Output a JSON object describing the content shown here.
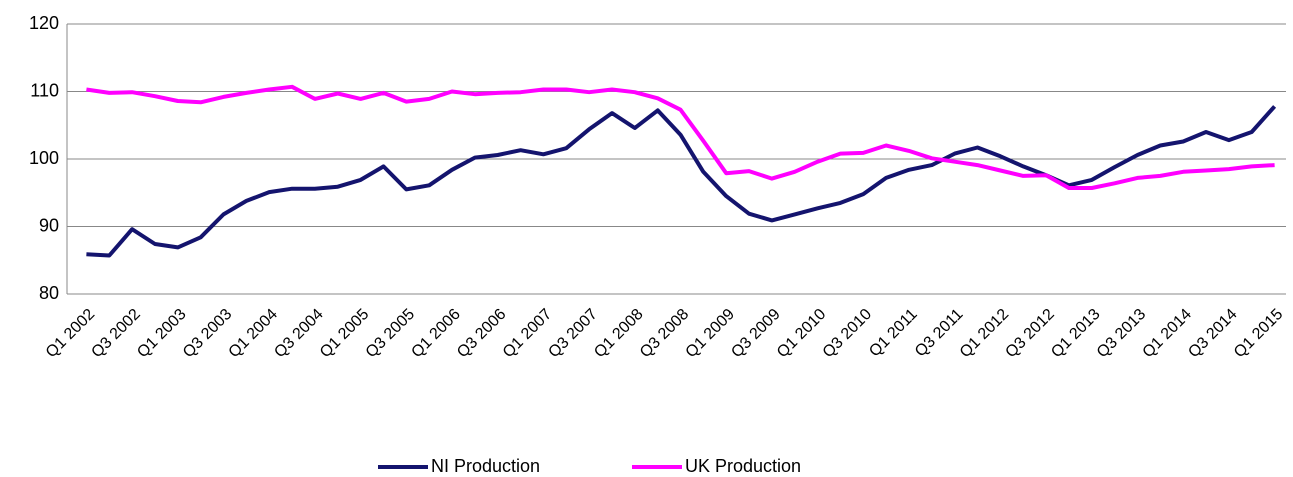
{
  "chart_data": {
    "type": "line",
    "categories": [
      "Q1 2002",
      null,
      "Q3 2002",
      null,
      "Q1 2003",
      null,
      "Q3 2003",
      null,
      "Q1 2004",
      null,
      "Q3 2004",
      null,
      "Q1 2005",
      null,
      "Q3 2005",
      null,
      "Q1 2006",
      null,
      "Q3 2006",
      null,
      "Q1 2007",
      null,
      "Q3 2007",
      null,
      "Q1 2008",
      null,
      "Q3 2008",
      null,
      "Q1 2009",
      null,
      "Q3 2009",
      null,
      "Q1 2010",
      null,
      "Q3 2010",
      null,
      "Q1 2011",
      null,
      "Q3 2011",
      null,
      "Q1 2012",
      null,
      "Q3 2012",
      null,
      "Q1 2013",
      null,
      "Q3 2013",
      null,
      "Q1 2014",
      null,
      "Q3 2014",
      null,
      "Q1 2015"
    ],
    "series": [
      {
        "name": "NI Production",
        "color": "#14146e",
        "values": [
          85.9,
          85.7,
          89.6,
          87.4,
          86.9,
          88.4,
          91.8,
          93.8,
          95.1,
          95.6,
          95.6,
          95.9,
          96.9,
          98.9,
          95.5,
          96.1,
          98.4,
          100.2,
          100.6,
          101.3,
          100.7,
          101.6,
          104.4,
          106.8,
          104.6,
          107.2,
          103.6,
          98.1,
          94.5,
          91.9,
          90.9,
          91.8,
          92.7,
          93.5,
          94.8,
          97.2,
          98.4,
          99.1,
          100.8,
          101.7,
          100.4,
          98.9,
          97.6,
          96.1,
          96.9,
          98.8,
          100.6,
          102.0,
          102.6,
          104.0,
          102.8,
          104.0,
          107.8
        ]
      },
      {
        "name": "UK Production",
        "color": "#ff00ff",
        "values": [
          110.3,
          109.8,
          109.9,
          109.3,
          108.6,
          108.4,
          109.2,
          109.8,
          110.3,
          110.7,
          108.9,
          109.7,
          108.9,
          109.8,
          108.5,
          108.9,
          110.0,
          109.6,
          109.8,
          109.9,
          110.3,
          110.3,
          109.9,
          110.3,
          109.9,
          109.0,
          107.3,
          102.7,
          97.9,
          98.2,
          97.1,
          98.1,
          99.6,
          100.8,
          100.9,
          102.0,
          101.2,
          100.1,
          99.6,
          99.1,
          98.3,
          97.5,
          97.6,
          95.7,
          95.7,
          96.4,
          97.2,
          97.5,
          98.1,
          98.3,
          98.5,
          98.9,
          99.1
        ]
      }
    ],
    "ylim": [
      80,
      120
    ],
    "yticks": [
      80,
      90,
      100,
      110,
      120
    ],
    "grid": true,
    "legend": "bottom"
  }
}
